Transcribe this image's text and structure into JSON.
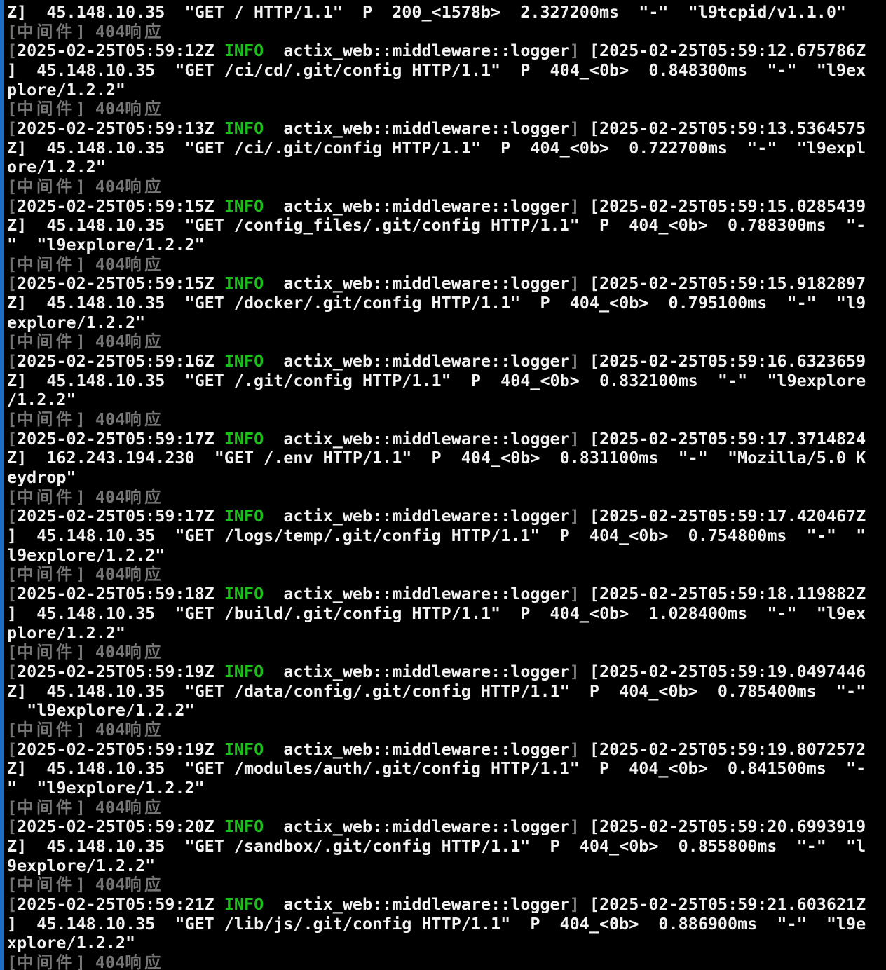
{
  "terminal": {
    "colors": {
      "background": "#000000",
      "foreground": "#f2f2f2",
      "dim_gray": "#757575",
      "info_green": "#1cbe1c",
      "left_border_blue": "#1d6fc5"
    },
    "middleware_404_label": "[中间件] 404响应",
    "lines": [
      [
        {
          "t": "Z]  45.148.10.35  \"GET / HTTP/1.1\"  P  200_<1578b>  2.327200ms  \"-\"  \"l9tcpid/v1.1.0\"",
          "c": "fg"
        }
      ],
      [
        {
          "t": "[",
          "c": "dim"
        },
        {
          "t": "中间件",
          "c": "dim",
          "cjk": true
        },
        {
          "t": "] 404",
          "c": "dim"
        },
        {
          "t": "响应",
          "c": "dim",
          "cjk": true
        }
      ],
      [
        {
          "t": "[",
          "c": "dim"
        },
        {
          "t": "2025-02-25T05:59:12Z ",
          "c": "fg"
        },
        {
          "t": "INFO",
          "c": "info"
        },
        {
          "t": "  actix_web::middleware::logger",
          "c": "fg"
        },
        {
          "t": "]",
          "c": "dim"
        },
        {
          "t": " [2025-02-25T05:59:12.675786Z",
          "c": "fg"
        }
      ],
      [
        {
          "t": "]  45.148.10.35  \"GET /ci/cd/.git/config HTTP/1.1\"  P  404_<0b>  0.848300ms  \"-\"  \"l9ex",
          "c": "fg"
        }
      ],
      [
        {
          "t": "plore/1.2.2\"",
          "c": "fg"
        }
      ],
      [
        {
          "t": "[",
          "c": "dim"
        },
        {
          "t": "中间件",
          "c": "dim",
          "cjk": true
        },
        {
          "t": "] 404",
          "c": "dim"
        },
        {
          "t": "响应",
          "c": "dim",
          "cjk": true
        }
      ],
      [
        {
          "t": "[",
          "c": "dim"
        },
        {
          "t": "2025-02-25T05:59:13Z ",
          "c": "fg"
        },
        {
          "t": "INFO",
          "c": "info"
        },
        {
          "t": "  actix_web::middleware::logger",
          "c": "fg"
        },
        {
          "t": "]",
          "c": "dim"
        },
        {
          "t": " [2025-02-25T05:59:13.5364575",
          "c": "fg"
        }
      ],
      [
        {
          "t": "Z]  45.148.10.35  \"GET /ci/.git/config HTTP/1.1\"  P  404_<0b>  0.722700ms  \"-\"  \"l9expl",
          "c": "fg"
        }
      ],
      [
        {
          "t": "ore/1.2.2\"",
          "c": "fg"
        }
      ],
      [
        {
          "t": "[",
          "c": "dim"
        },
        {
          "t": "中间件",
          "c": "dim",
          "cjk": true
        },
        {
          "t": "] 404",
          "c": "dim"
        },
        {
          "t": "响应",
          "c": "dim",
          "cjk": true
        }
      ],
      [
        {
          "t": "[",
          "c": "dim"
        },
        {
          "t": "2025-02-25T05:59:15Z ",
          "c": "fg"
        },
        {
          "t": "INFO",
          "c": "info"
        },
        {
          "t": "  actix_web::middleware::logger",
          "c": "fg"
        },
        {
          "t": "]",
          "c": "dim"
        },
        {
          "t": " [2025-02-25T05:59:15.0285439",
          "c": "fg"
        }
      ],
      [
        {
          "t": "Z]  45.148.10.35  \"GET /config_files/.git/config HTTP/1.1\"  P  404_<0b>  0.788300ms  \"-",
          "c": "fg"
        }
      ],
      [
        {
          "t": "\"  \"l9explore/1.2.2\"",
          "c": "fg"
        }
      ],
      [
        {
          "t": "[",
          "c": "dim"
        },
        {
          "t": "中间件",
          "c": "dim",
          "cjk": true
        },
        {
          "t": "] 404",
          "c": "dim"
        },
        {
          "t": "响应",
          "c": "dim",
          "cjk": true
        }
      ],
      [
        {
          "t": "[",
          "c": "dim"
        },
        {
          "t": "2025-02-25T05:59:15Z ",
          "c": "fg"
        },
        {
          "t": "INFO",
          "c": "info"
        },
        {
          "t": "  actix_web::middleware::logger",
          "c": "fg"
        },
        {
          "t": "]",
          "c": "dim"
        },
        {
          "t": " [2025-02-25T05:59:15.9182897",
          "c": "fg"
        }
      ],
      [
        {
          "t": "Z]  45.148.10.35  \"GET /docker/.git/config HTTP/1.1\"  P  404_<0b>  0.795100ms  \"-\"  \"l9",
          "c": "fg"
        }
      ],
      [
        {
          "t": "explore/1.2.2\"",
          "c": "fg"
        }
      ],
      [
        {
          "t": "[",
          "c": "dim"
        },
        {
          "t": "中间件",
          "c": "dim",
          "cjk": true
        },
        {
          "t": "] 404",
          "c": "dim"
        },
        {
          "t": "响应",
          "c": "dim",
          "cjk": true
        }
      ],
      [
        {
          "t": "[",
          "c": "dim"
        },
        {
          "t": "2025-02-25T05:59:16Z ",
          "c": "fg"
        },
        {
          "t": "INFO",
          "c": "info"
        },
        {
          "t": "  actix_web::middleware::logger",
          "c": "fg"
        },
        {
          "t": "]",
          "c": "dim"
        },
        {
          "t": " [2025-02-25T05:59:16.6323659",
          "c": "fg"
        }
      ],
      [
        {
          "t": "Z]  45.148.10.35  \"GET /.git/config HTTP/1.1\"  P  404_<0b>  0.832100ms  \"-\"  \"l9explore",
          "c": "fg"
        }
      ],
      [
        {
          "t": "/1.2.2\"",
          "c": "fg"
        }
      ],
      [
        {
          "t": "[",
          "c": "dim"
        },
        {
          "t": "中间件",
          "c": "dim",
          "cjk": true
        },
        {
          "t": "] 404",
          "c": "dim"
        },
        {
          "t": "响应",
          "c": "dim",
          "cjk": true
        }
      ],
      [
        {
          "t": "[",
          "c": "dim"
        },
        {
          "t": "2025-02-25T05:59:17Z ",
          "c": "fg"
        },
        {
          "t": "INFO",
          "c": "info"
        },
        {
          "t": "  actix_web::middleware::logger",
          "c": "fg"
        },
        {
          "t": "]",
          "c": "dim"
        },
        {
          "t": " [2025-02-25T05:59:17.3714824",
          "c": "fg"
        }
      ],
      [
        {
          "t": "Z]  162.243.194.230  \"GET /.env HTTP/1.1\"  P  404_<0b>  0.831100ms  \"-\"  \"Mozilla/5.0 K",
          "c": "fg"
        }
      ],
      [
        {
          "t": "eydrop\"",
          "c": "fg"
        }
      ],
      [
        {
          "t": "[",
          "c": "dim"
        },
        {
          "t": "中间件",
          "c": "dim",
          "cjk": true
        },
        {
          "t": "] 404",
          "c": "dim"
        },
        {
          "t": "响应",
          "c": "dim",
          "cjk": true
        }
      ],
      [
        {
          "t": "[",
          "c": "dim"
        },
        {
          "t": "2025-02-25T05:59:17Z ",
          "c": "fg"
        },
        {
          "t": "INFO",
          "c": "info"
        },
        {
          "t": "  actix_web::middleware::logger",
          "c": "fg"
        },
        {
          "t": "]",
          "c": "dim"
        },
        {
          "t": " [2025-02-25T05:59:17.420467Z",
          "c": "fg"
        }
      ],
      [
        {
          "t": "]  45.148.10.35  \"GET /logs/temp/.git/config HTTP/1.1\"  P  404_<0b>  0.754800ms  \"-\"  \"",
          "c": "fg"
        }
      ],
      [
        {
          "t": "l9explore/1.2.2\"",
          "c": "fg"
        }
      ],
      [
        {
          "t": "[",
          "c": "dim"
        },
        {
          "t": "中间件",
          "c": "dim",
          "cjk": true
        },
        {
          "t": "] 404",
          "c": "dim"
        },
        {
          "t": "响应",
          "c": "dim",
          "cjk": true
        }
      ],
      [
        {
          "t": "[",
          "c": "dim"
        },
        {
          "t": "2025-02-25T05:59:18Z ",
          "c": "fg"
        },
        {
          "t": "INFO",
          "c": "info"
        },
        {
          "t": "  actix_web::middleware::logger",
          "c": "fg"
        },
        {
          "t": "]",
          "c": "dim"
        },
        {
          "t": " [2025-02-25T05:59:18.119882Z",
          "c": "fg"
        }
      ],
      [
        {
          "t": "]  45.148.10.35  \"GET /build/.git/config HTTP/1.1\"  P  404_<0b>  1.028400ms  \"-\"  \"l9ex",
          "c": "fg"
        }
      ],
      [
        {
          "t": "plore/1.2.2\"",
          "c": "fg"
        }
      ],
      [
        {
          "t": "[",
          "c": "dim"
        },
        {
          "t": "中间件",
          "c": "dim",
          "cjk": true
        },
        {
          "t": "] 404",
          "c": "dim"
        },
        {
          "t": "响应",
          "c": "dim",
          "cjk": true
        }
      ],
      [
        {
          "t": "[",
          "c": "dim"
        },
        {
          "t": "2025-02-25T05:59:19Z ",
          "c": "fg"
        },
        {
          "t": "INFO",
          "c": "info"
        },
        {
          "t": "  actix_web::middleware::logger",
          "c": "fg"
        },
        {
          "t": "]",
          "c": "dim"
        },
        {
          "t": " [2025-02-25T05:59:19.0497446",
          "c": "fg"
        }
      ],
      [
        {
          "t": "Z]  45.148.10.35  \"GET /data/config/.git/config HTTP/1.1\"  P  404_<0b>  0.785400ms  \"-\"",
          "c": "fg"
        }
      ],
      [
        {
          "t": "  \"l9explore/1.2.2\"",
          "c": "fg"
        }
      ],
      [
        {
          "t": "[",
          "c": "dim"
        },
        {
          "t": "中间件",
          "c": "dim",
          "cjk": true
        },
        {
          "t": "] 404",
          "c": "dim"
        },
        {
          "t": "响应",
          "c": "dim",
          "cjk": true
        }
      ],
      [
        {
          "t": "[",
          "c": "dim"
        },
        {
          "t": "2025-02-25T05:59:19Z ",
          "c": "fg"
        },
        {
          "t": "INFO",
          "c": "info"
        },
        {
          "t": "  actix_web::middleware::logger",
          "c": "fg"
        },
        {
          "t": "]",
          "c": "dim"
        },
        {
          "t": " [2025-02-25T05:59:19.8072572",
          "c": "fg"
        }
      ],
      [
        {
          "t": "Z]  45.148.10.35  \"GET /modules/auth/.git/config HTTP/1.1\"  P  404_<0b>  0.841500ms  \"-",
          "c": "fg"
        }
      ],
      [
        {
          "t": "\"  \"l9explore/1.2.2\"",
          "c": "fg"
        }
      ],
      [
        {
          "t": "[",
          "c": "dim"
        },
        {
          "t": "中间件",
          "c": "dim",
          "cjk": true
        },
        {
          "t": "] 404",
          "c": "dim"
        },
        {
          "t": "响应",
          "c": "dim",
          "cjk": true
        }
      ],
      [
        {
          "t": "[",
          "c": "dim"
        },
        {
          "t": "2025-02-25T05:59:20Z ",
          "c": "fg"
        },
        {
          "t": "INFO",
          "c": "info"
        },
        {
          "t": "  actix_web::middleware::logger",
          "c": "fg"
        },
        {
          "t": "]",
          "c": "dim"
        },
        {
          "t": " [2025-02-25T05:59:20.6993919",
          "c": "fg"
        }
      ],
      [
        {
          "t": "Z]  45.148.10.35  \"GET /sandbox/.git/config HTTP/1.1\"  P  404_<0b>  0.855800ms  \"-\"  \"l",
          "c": "fg"
        }
      ],
      [
        {
          "t": "9explore/1.2.2\"",
          "c": "fg"
        }
      ],
      [
        {
          "t": "[",
          "c": "dim"
        },
        {
          "t": "中间件",
          "c": "dim",
          "cjk": true
        },
        {
          "t": "] 404",
          "c": "dim"
        },
        {
          "t": "响应",
          "c": "dim",
          "cjk": true
        }
      ],
      [
        {
          "t": "[",
          "c": "dim"
        },
        {
          "t": "2025-02-25T05:59:21Z ",
          "c": "fg"
        },
        {
          "t": "INFO",
          "c": "info"
        },
        {
          "t": "  actix_web::middleware::logger",
          "c": "fg"
        },
        {
          "t": "]",
          "c": "dim"
        },
        {
          "t": " [2025-02-25T05:59:21.603621Z",
          "c": "fg"
        }
      ],
      [
        {
          "t": "]  45.148.10.35  \"GET /lib/js/.git/config HTTP/1.1\"  P  404_<0b>  0.886900ms  \"-\"  \"l9e",
          "c": "fg"
        }
      ],
      [
        {
          "t": "xplore/1.2.2\"",
          "c": "fg"
        }
      ],
      [
        {
          "t": "[",
          "c": "dim"
        },
        {
          "t": "中间件",
          "c": "dim",
          "cjk": true
        },
        {
          "t": "] 404",
          "c": "dim"
        },
        {
          "t": "响应",
          "c": "dim",
          "cjk": true
        }
      ]
    ]
  }
}
